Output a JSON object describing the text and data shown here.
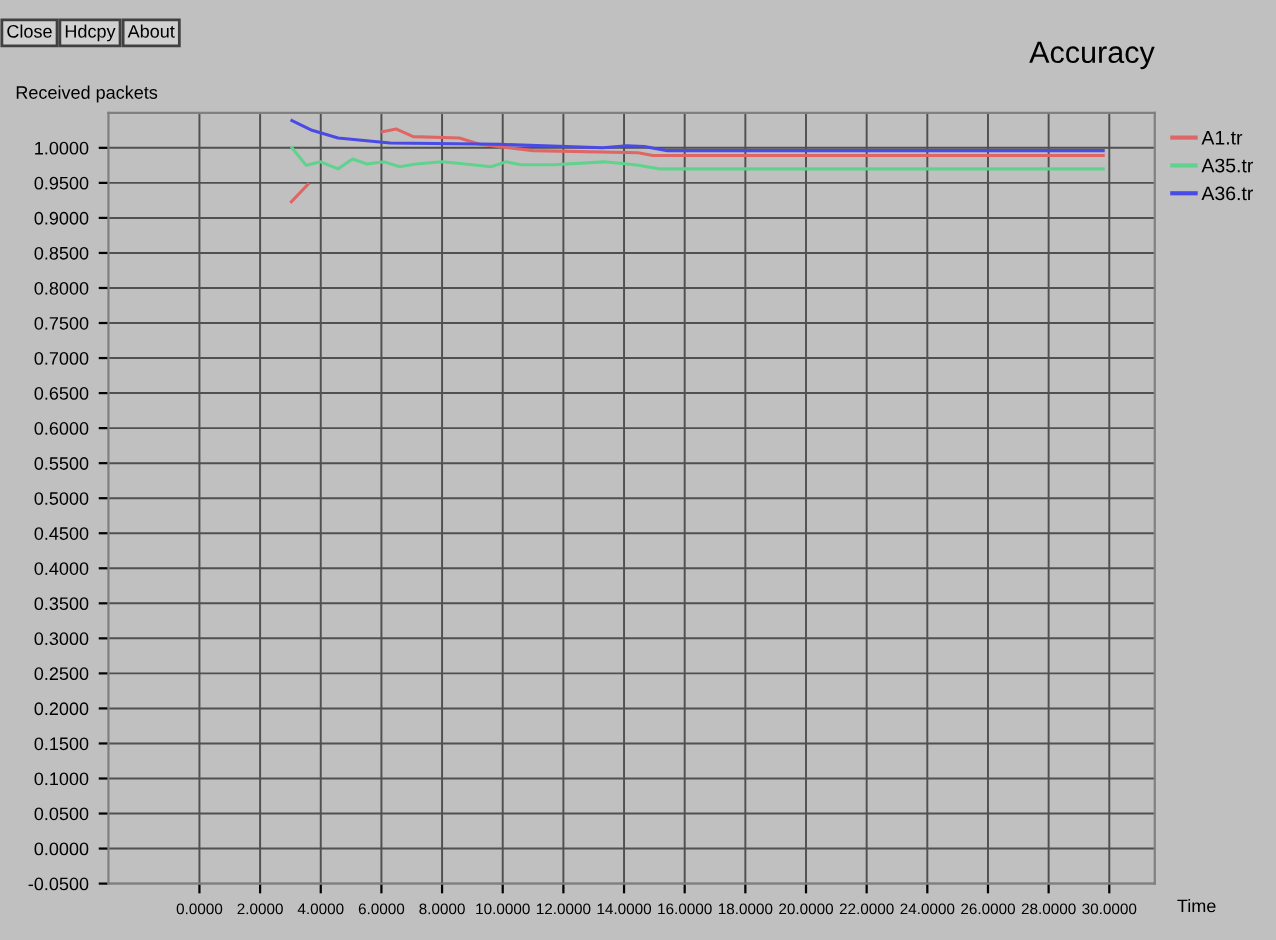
{
  "chart_data": {
    "type": "line",
    "title": "Accuracy",
    "ylabel": "Received packets",
    "xlabel": "Time",
    "annotations": [
      "Close",
      "Hdcpy",
      "About"
    ],
    "series": [
      {
        "name": "A1.tr",
        "color": "#e06666",
        "x": [
          3.03,
          3.58,
          null,
          6.04,
          6.48,
          7.05,
          8.57,
          9.24,
          11.0,
          14.46,
          14.95,
          29.8
        ],
        "values": [
          0.923,
          0.948,
          null,
          1.023,
          1.027,
          1.016,
          1.014,
          1.005,
          0.996,
          0.993,
          0.989,
          0.989
        ]
      },
      {
        "name": "A35.tr",
        "color": "#5fd38d",
        "x": [
          3.05,
          3.52,
          4.0,
          4.57,
          5.05,
          5.52,
          6.09,
          6.61,
          7.14,
          8.0,
          8.76,
          9.62,
          10.1,
          10.6,
          11.7,
          13.33,
          14.1,
          14.47,
          15.14,
          29.8
        ],
        "values": [
          1.0,
          0.975,
          0.98,
          0.97,
          0.984,
          0.977,
          0.98,
          0.973,
          0.977,
          0.98,
          0.977,
          0.973,
          0.98,
          0.976,
          0.976,
          0.98,
          0.977,
          0.975,
          0.97,
          0.97
        ]
      },
      {
        "name": "A36.tr",
        "color": "#4a4ae6",
        "x": [
          3.05,
          3.71,
          4.57,
          6.29,
          9.9,
          13.3,
          14.1,
          14.67,
          15.43,
          29.8
        ],
        "values": [
          1.039,
          1.025,
          1.014,
          1.007,
          1.005,
          1.0,
          1.003,
          1.002,
          0.996,
          0.996
        ]
      }
    ],
    "xlim": [
      -3,
      31.5
    ],
    "ylim": [
      -0.05,
      1.05
    ],
    "xticks": [
      {
        "value": 0,
        "label": "0.0000"
      },
      {
        "value": 2,
        "label": "2.0000"
      },
      {
        "value": 4,
        "label": "4.0000"
      },
      {
        "value": 6,
        "label": "6.0000"
      },
      {
        "value": 8,
        "label": "8.0000"
      },
      {
        "value": 10,
        "label": "10.0000"
      },
      {
        "value": 12,
        "label": "12.0000"
      },
      {
        "value": 14,
        "label": "14.0000"
      },
      {
        "value": 16,
        "label": "16.0000"
      },
      {
        "value": 18,
        "label": "18.0000"
      },
      {
        "value": 20,
        "label": "20.0000"
      },
      {
        "value": 22,
        "label": "22.0000"
      },
      {
        "value": 24,
        "label": "24.0000"
      },
      {
        "value": 26,
        "label": "26.0000"
      },
      {
        "value": 28,
        "label": "28.0000"
      },
      {
        "value": 30,
        "label": "30.0000"
      }
    ],
    "yticks": [
      {
        "value": -0.05,
        "label": "-0.0500"
      },
      {
        "value": 0,
        "label": "0.0000"
      },
      {
        "value": 0.05,
        "label": "0.0500"
      },
      {
        "value": 0.1,
        "label": "0.1000"
      },
      {
        "value": 0.15,
        "label": "0.1500"
      },
      {
        "value": 0.2,
        "label": "0.2000"
      },
      {
        "value": 0.25,
        "label": "0.2500"
      },
      {
        "value": 0.3,
        "label": "0.3000"
      },
      {
        "value": 0.35,
        "label": "0.3500"
      },
      {
        "value": 0.4,
        "label": "0.4000"
      },
      {
        "value": 0.45,
        "label": "0.4500"
      },
      {
        "value": 0.5,
        "label": "0.5000"
      },
      {
        "value": 0.55,
        "label": "0.5500"
      },
      {
        "value": 0.6,
        "label": "0.6000"
      },
      {
        "value": 0.65,
        "label": "0.6500"
      },
      {
        "value": 0.7,
        "label": "0.7000"
      },
      {
        "value": 0.75,
        "label": "0.7500"
      },
      {
        "value": 0.8,
        "label": "0.8000"
      },
      {
        "value": 0.85,
        "label": "0.8500"
      },
      {
        "value": 0.9,
        "label": "0.9000"
      },
      {
        "value": 0.95,
        "label": "0.9500"
      },
      {
        "value": 1.0,
        "label": "1.0000"
      }
    ],
    "grid": true,
    "legend": "top right",
    "marker": "none",
    "line_style": "solid"
  }
}
